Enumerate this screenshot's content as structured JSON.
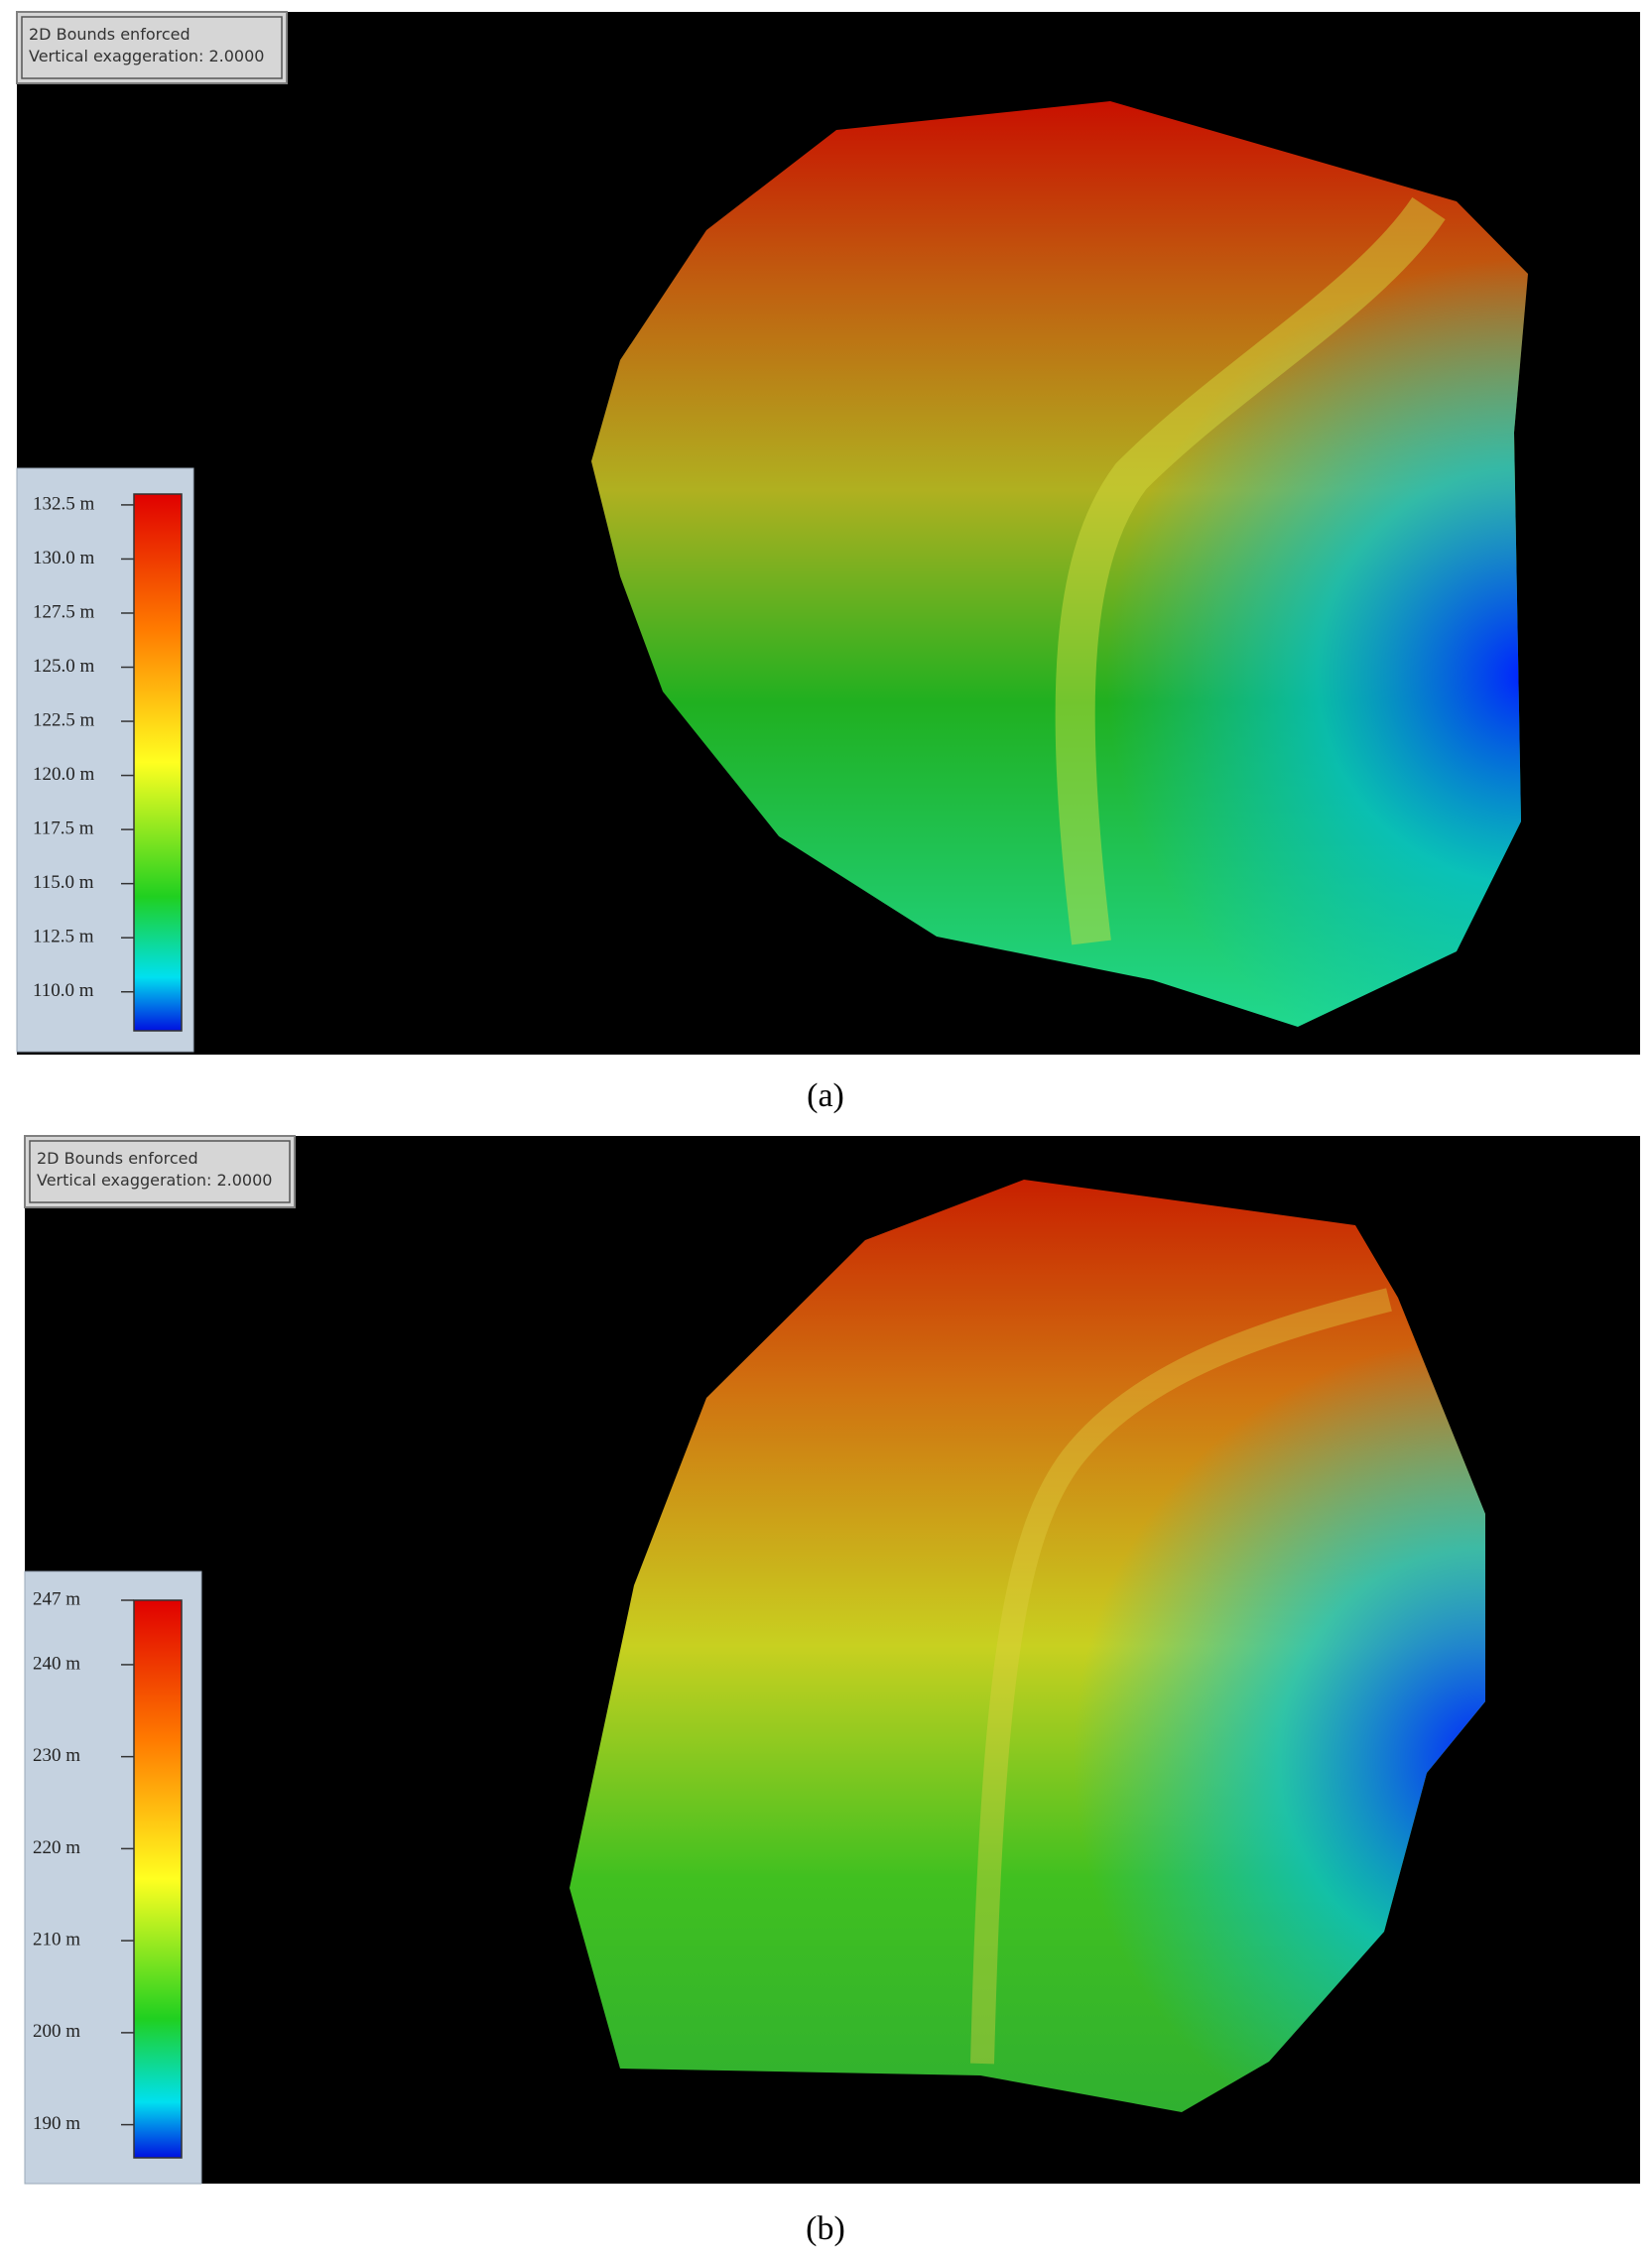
{
  "panels": [
    {
      "info": [
        "2D Bounds enforced",
        "Vertical exaggeration: 2.0000"
      ],
      "colorbar": {
        "lim": [
          108.2,
          133.0
        ],
        "ticks": [
          {
            "value": 132.5,
            "label": "132.5 m"
          },
          {
            "value": 130.0,
            "label": "130.0 m"
          },
          {
            "value": 127.5,
            "label": "127.5 m"
          },
          {
            "value": 125.0,
            "label": "125.0 m"
          },
          {
            "value": 122.5,
            "label": "122.5 m"
          },
          {
            "value": 120.0,
            "label": "120.0 m"
          },
          {
            "value": 117.5,
            "label": "117.5 m"
          },
          {
            "value": 115.0,
            "label": "115.0 m"
          },
          {
            "value": 112.5,
            "label": "112.5 m"
          },
          {
            "value": 110.0,
            "label": "110.0 m"
          }
        ]
      },
      "caption": "(a)"
    },
    {
      "info": [
        "2D Bounds enforced",
        "Vertical exaggeration: 2.0000"
      ],
      "colorbar": {
        "lim": [
          186.4,
          247
        ],
        "ticks": [
          {
            "value": 247,
            "label": "247 m"
          },
          {
            "value": 240,
            "label": "240 m"
          },
          {
            "value": 230,
            "label": "230 m"
          },
          {
            "value": 220,
            "label": "220 m"
          },
          {
            "value": 210,
            "label": "210 m"
          },
          {
            "value": 200,
            "label": "200 m"
          },
          {
            "value": 190,
            "label": "190 m"
          }
        ]
      },
      "caption": "(b)"
    }
  ]
}
